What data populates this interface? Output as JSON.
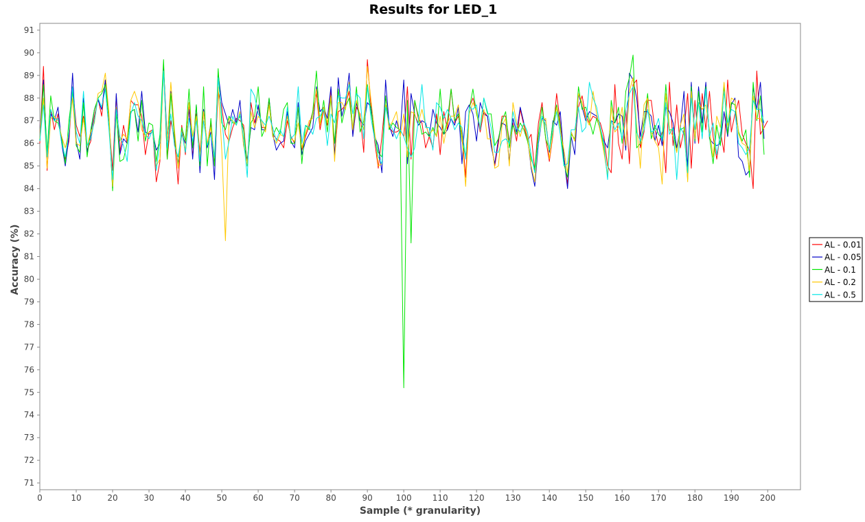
{
  "chart_data": {
    "type": "line",
    "title": "Results for LED_1",
    "xlabel": "Sample (* granularity)",
    "ylabel": "Accuracy (%)",
    "xlim": [
      0,
      209
    ],
    "ylim": [
      70.7,
      91.3
    ],
    "xticks": [
      0,
      10,
      20,
      30,
      40,
      50,
      60,
      70,
      80,
      90,
      100,
      110,
      120,
      130,
      140,
      150,
      160,
      170,
      180,
      190,
      200
    ],
    "yticks": [
      71,
      72,
      73,
      74,
      75,
      76,
      77,
      78,
      79,
      80,
      81,
      82,
      83,
      84,
      85,
      86,
      87,
      88,
      89,
      90,
      91
    ],
    "grid": false,
    "legend_position": "right",
    "series": [
      {
        "name": "AL - 0.01",
        "color": "#ff0000",
        "values": [
          86.0,
          89.4,
          84.8,
          87.5,
          86.6,
          87.3,
          86.1,
          85.3,
          86.1,
          88.5,
          86.8,
          86.3,
          87.2,
          85.7,
          86.1,
          87.2,
          88.0,
          87.2,
          88.8,
          87.0,
          84.8,
          88.1,
          85.6,
          86.8,
          86.0,
          87.9,
          87.7,
          87.7,
          87.2,
          85.5,
          86.5,
          86.6,
          84.3,
          85.2,
          89.5,
          85.3,
          87.0,
          86.2,
          84.2,
          86.8,
          85.5,
          87.8,
          85.4,
          87.3,
          85.6,
          87.5,
          85.9,
          86.9,
          85.0,
          88.3,
          87.6,
          86.4,
          86.1,
          86.7,
          87.1,
          87.0,
          86.8,
          85.0,
          87.8,
          86.9,
          87.6,
          86.7,
          86.7,
          87.9,
          86.4,
          86.2,
          86.1,
          85.8,
          87.0,
          86.3,
          86.0,
          87.6,
          85.7,
          86.3,
          86.8,
          87.4,
          88.2,
          86.6,
          87.5,
          86.8,
          88.4,
          85.4,
          87.4,
          87.5,
          87.7,
          88.3,
          86.4,
          87.6,
          87.3,
          85.6,
          89.7,
          87.6,
          86.1,
          84.9,
          86.3,
          88.1,
          86.7,
          86.5,
          86.5,
          86.6,
          86.3,
          88.5,
          85.3,
          87.9,
          87.1,
          86.9,
          85.8,
          86.3,
          85.8,
          87.3,
          85.5,
          87.4,
          86.6,
          88.4,
          86.9,
          87.2,
          86.5,
          84.5,
          87.6,
          88.0,
          87.4,
          86.5,
          87.4,
          87.2,
          86.1,
          85.0,
          86.0,
          87.2,
          87.2,
          86.1,
          86.9,
          86.1,
          87.5,
          86.8,
          86.1,
          86.4,
          84.8,
          86.9,
          87.8,
          86.2,
          85.2,
          86.4,
          88.2,
          86.9,
          85.4,
          84.2,
          86.5,
          86.1,
          87.6,
          88.1,
          87.2,
          86.9,
          87.2,
          87.1,
          86.9,
          86.3,
          85.0,
          84.7,
          88.6,
          86.0,
          85.3,
          87.5,
          85.1,
          88.6,
          88.8,
          85.8,
          86.5,
          87.9,
          87.9,
          86.6,
          85.9,
          86.5,
          84.7,
          88.7,
          85.9,
          87.7,
          85.8,
          86.6,
          88.2,
          84.9,
          87.9,
          86.0,
          88.2,
          86.6,
          88.3,
          86.3,
          85.3,
          86.5,
          85.6,
          88.8,
          86.5,
          87.3,
          87.9,
          86.4,
          86.0,
          85.7,
          84.0,
          89.2,
          86.4,
          86.7,
          87.0
        ]
      },
      {
        "name": "AL - 0.05",
        "color": "#0000c8",
        "values": [
          86.1,
          88.8,
          85.4,
          87.3,
          87.0,
          87.6,
          86.0,
          85.0,
          86.3,
          89.1,
          86.1,
          85.3,
          88.0,
          85.6,
          86.4,
          87.5,
          87.9,
          87.5,
          88.8,
          87.1,
          84.0,
          88.2,
          85.5,
          86.2,
          86.0,
          87.4,
          87.5,
          86.5,
          88.3,
          86.5,
          86.4,
          86.5,
          85.7,
          86.0,
          89.4,
          86.2,
          88.3,
          86.3,
          85.1,
          86.4,
          86.0,
          87.5,
          85.3,
          87.7,
          84.7,
          87.5,
          85.8,
          86.5,
          84.4,
          89.1,
          87.8,
          87.3,
          86.8,
          87.5,
          86.9,
          87.9,
          85.9,
          85.3,
          86.7,
          86.6,
          87.7,
          86.6,
          86.6,
          88.0,
          86.4,
          85.7,
          86.0,
          86.1,
          87.4,
          86.1,
          85.8,
          87.8,
          85.5,
          86.1,
          86.4,
          86.7,
          88.5,
          87.4,
          87.6,
          87.1,
          88.5,
          85.4,
          88.9,
          87.2,
          87.8,
          89.1,
          86.3,
          87.8,
          87.0,
          86.8,
          87.8,
          87.6,
          86.3,
          85.9,
          84.7,
          88.8,
          86.8,
          86.3,
          87.0,
          86.4,
          88.8,
          85.1,
          88.2,
          87.3,
          86.8,
          87.0,
          86.9,
          86.3,
          87.5,
          86.9,
          86.7,
          86.4,
          86.6,
          87.1,
          86.8,
          87.6,
          85.1,
          87.4,
          87.7,
          87.3,
          86.1,
          87.8,
          87.3,
          87.2,
          85.9,
          85.1,
          86.2,
          86.9,
          86.8,
          85.2,
          87.1,
          86.5,
          87.6,
          86.9,
          86.3,
          84.9,
          84.1,
          86.0,
          87.1,
          87.0,
          85.6,
          87.0,
          86.8,
          87.4,
          85.4,
          84.0,
          86.3,
          85.5,
          88.2,
          87.6,
          87.0,
          87.4,
          87.3,
          87.2,
          86.6,
          86.1,
          85.8,
          87.0,
          86.9,
          87.3,
          87.2,
          85.7,
          89.1,
          88.8,
          88.0,
          86.3,
          87.4,
          87.4,
          87.2,
          86.1,
          86.8,
          85.9,
          87.6,
          87.4,
          86.9,
          85.8,
          86.7,
          88.3,
          84.9,
          88.7,
          86.0,
          88.5,
          86.9,
          88.7,
          86.2,
          86.0,
          85.9,
          86.0,
          87.4,
          86.3,
          87.7,
          88.0,
          85.4,
          85.2,
          84.6,
          84.8,
          88.5,
          87.5,
          88.7,
          86.2
        ]
      },
      {
        "name": "AL - 0.1",
        "color": "#00e600",
        "values": [
          86.1,
          88.6,
          85.6,
          88.1,
          87.0,
          86.9,
          86.3,
          85.1,
          87.0,
          88.3,
          85.9,
          85.6,
          87.8,
          85.4,
          86.6,
          87.5,
          88.0,
          88.2,
          88.6,
          87.1,
          83.9,
          87.4,
          85.2,
          85.3,
          86.0,
          87.4,
          87.5,
          86.1,
          87.9,
          86.1,
          86.9,
          86.8,
          85.2,
          86.4,
          89.7,
          85.3,
          88.2,
          86.3,
          85.0,
          86.7,
          86.1,
          88.4,
          85.8,
          87.7,
          85.0,
          88.5,
          85.0,
          87.1,
          85.0,
          89.3,
          86.9,
          86.6,
          87.2,
          86.9,
          86.9,
          87.2,
          86.6,
          85.0,
          86.9,
          87.2,
          88.5,
          86.3,
          86.7,
          88.0,
          86.3,
          86.7,
          86.4,
          87.5,
          87.8,
          86.0,
          86.0,
          87.6,
          85.1,
          86.8,
          86.6,
          87.4,
          89.2,
          86.8,
          87.9,
          86.5,
          88.0,
          86.0,
          88.4,
          86.9,
          87.6,
          88.0,
          86.6,
          88.5,
          86.5,
          87.0,
          88.6,
          87.4,
          86.4,
          85.6,
          85.4,
          88.1,
          86.6,
          86.9,
          86.7,
          86.6,
          75.2,
          87.9,
          81.6,
          87.9,
          87.2,
          86.4,
          86.5,
          86.3,
          86.7,
          86.3,
          88.4,
          86.4,
          87.0,
          88.4,
          87.0,
          87.3,
          86.1,
          85.4,
          87.5,
          88.4,
          87.3,
          86.7,
          88.0,
          87.3,
          87.3,
          85.9,
          86.2,
          87.0,
          87.4,
          85.8,
          86.8,
          86.4,
          86.9,
          86.6,
          86.1,
          85.3,
          84.9,
          86.4,
          87.6,
          86.2,
          85.7,
          86.9,
          87.7,
          86.8,
          85.1,
          84.5,
          86.4,
          86.2,
          88.5,
          87.5,
          87.6,
          87.0,
          86.4,
          87.1,
          86.6,
          85.8,
          84.5,
          87.9,
          86.9,
          87.6,
          86.0,
          88.3,
          88.9,
          89.9,
          85.8,
          86.0,
          86.9,
          88.2,
          86.2,
          86.8,
          86.4,
          86.2,
          88.6,
          86.6,
          86.6,
          85.6,
          86.6,
          86.7,
          84.4,
          88.5,
          86.1,
          88.3,
          86.5,
          88.5,
          86.3,
          85.1,
          86.8,
          85.9,
          88.5,
          86.4,
          87.8,
          87.7,
          86.5,
          86.1,
          86.6,
          84.5,
          88.7,
          87.0,
          88.1,
          85.5
        ]
      },
      {
        "name": "AL - 0.2",
        "color": "#ffc800",
        "values": [
          86.2,
          88.0,
          84.9,
          87.1,
          87.2,
          87.0,
          86.3,
          85.8,
          86.5,
          88.0,
          86.0,
          85.9,
          87.1,
          85.9,
          86.5,
          86.9,
          88.2,
          88.3,
          89.1,
          87.3,
          84.1,
          87.6,
          86.1,
          86.4,
          86.2,
          87.9,
          88.3,
          87.8,
          86.6,
          86.3,
          86.5,
          86.5,
          85.0,
          85.3,
          89.2,
          86.1,
          88.7,
          86.6,
          84.9,
          86.5,
          85.7,
          87.8,
          86.3,
          87.2,
          85.4,
          87.4,
          86.0,
          86.7,
          85.4,
          88.5,
          85.7,
          81.7,
          87.1,
          87.0,
          86.8,
          87.4,
          85.9,
          85.1,
          87.4,
          86.7,
          87.2,
          87.0,
          86.5,
          87.7,
          86.3,
          86.0,
          86.4,
          86.3,
          87.2,
          86.2,
          86.1,
          86.9,
          85.8,
          86.4,
          87.0,
          87.1,
          88.4,
          86.8,
          87.6,
          86.9,
          88.1,
          85.2,
          87.8,
          87.8,
          87.5,
          88.7,
          86.6,
          87.9,
          87.2,
          86.6,
          89.4,
          87.9,
          86.5,
          85.0,
          85.1,
          87.7,
          86.7,
          87.0,
          87.4,
          86.3,
          87.3,
          85.4,
          87.4,
          87.3,
          86.9,
          87.5,
          86.8,
          86.4,
          86.6,
          86.3,
          87.2,
          86.0,
          86.9,
          87.2,
          87.2,
          87.7,
          86.3,
          84.1,
          87.3,
          87.8,
          87.4,
          86.7,
          87.5,
          86.2,
          86.2,
          84.9,
          85.0,
          86.8,
          87.1,
          85.0,
          87.8,
          86.9,
          86.3,
          86.9,
          86.3,
          85.0,
          84.3,
          86.2,
          87.0,
          87.1,
          85.3,
          86.5,
          87.6,
          86.6,
          85.7,
          84.7,
          86.5,
          86.1,
          88.2,
          87.8,
          87.1,
          86.8,
          88.3,
          87.3,
          86.5,
          85.6,
          84.6,
          87.6,
          86.5,
          86.7,
          87.6,
          85.9,
          88.3,
          88.9,
          86.8,
          84.9,
          87.7,
          88.0,
          86.5,
          86.1,
          85.8,
          84.2,
          88.2,
          86.6,
          86.3,
          85.6,
          86.8,
          87.3,
          84.3,
          88.3,
          86.2,
          87.8,
          87.5,
          87.7,
          86.6,
          85.4,
          87.2,
          86.7,
          88.7,
          86.8,
          88.0,
          87.9,
          86.4,
          86.0,
          85.9,
          84.8,
          88.1,
          87.1,
          87.1,
          86.6
        ]
      },
      {
        "name": "AL - 0.5",
        "color": "#00e6e6",
        "values": [
          86.1,
          87.7,
          85.4,
          87.5,
          87.0,
          87.1,
          86.0,
          85.4,
          86.5,
          88.5,
          86.5,
          86.0,
          88.3,
          85.9,
          86.2,
          87.0,
          88.0,
          87.6,
          88.4,
          86.6,
          84.4,
          87.5,
          86.3,
          85.9,
          85.2,
          87.3,
          87.8,
          87.2,
          87.0,
          86.4,
          86.2,
          86.6,
          84.8,
          86.1,
          89.2,
          85.8,
          87.3,
          85.9,
          85.4,
          86.5,
          85.6,
          87.1,
          86.1,
          87.0,
          85.2,
          87.0,
          85.9,
          86.4,
          85.4,
          88.9,
          87.2,
          85.3,
          86.1,
          87.2,
          86.8,
          87.3,
          86.2,
          84.5,
          88.4,
          88.1,
          87.3,
          87.0,
          86.8,
          87.2,
          86.7,
          86.1,
          86.6,
          86.3,
          87.6,
          86.2,
          86.4,
          88.5,
          86.0,
          86.8,
          86.7,
          86.4,
          87.1,
          87.2,
          87.5,
          85.9,
          87.3,
          86.9,
          88.1,
          88.0,
          88.0,
          88.6,
          87.3,
          88.2,
          88.0,
          86.2,
          88.5,
          87.1,
          86.2,
          85.4,
          85.1,
          87.6,
          86.9,
          86.6,
          86.2,
          86.6,
          86.3,
          85.8,
          85.4,
          85.8,
          87.0,
          88.6,
          86.7,
          86.7,
          85.7,
          87.8,
          87.6,
          87.1,
          87.5,
          87.1,
          86.6,
          86.9,
          86.7,
          85.3,
          87.6,
          87.5,
          87.7,
          86.6,
          88.0,
          87.4,
          86.7,
          85.6,
          85.6,
          86.1,
          86.2,
          86.0,
          87.4,
          86.7,
          86.5,
          86.9,
          86.5,
          85.5,
          84.7,
          86.1,
          87.2,
          86.8,
          85.7,
          86.6,
          87.4,
          86.4,
          85.0,
          85.1,
          86.6,
          86.6,
          87.6,
          86.5,
          86.7,
          88.7,
          88.0,
          87.6,
          86.7,
          86.0,
          84.4,
          87.0,
          86.6,
          86.9,
          86.2,
          87.5,
          88.2,
          88.5,
          86.5,
          86.1,
          86.6,
          87.5,
          86.5,
          86.6,
          87.1,
          86.1,
          87.8,
          86.4,
          86.7,
          84.4,
          86.7,
          86.4,
          84.7,
          88.0,
          86.6,
          87.8,
          86.2,
          88.4,
          86.3,
          86.9,
          85.5,
          86.4,
          88.3,
          86.9,
          87.5,
          87.4,
          86.0,
          85.8,
          85.5,
          85.8,
          87.9,
          87.5,
          87.5,
          86.9
        ]
      }
    ]
  }
}
